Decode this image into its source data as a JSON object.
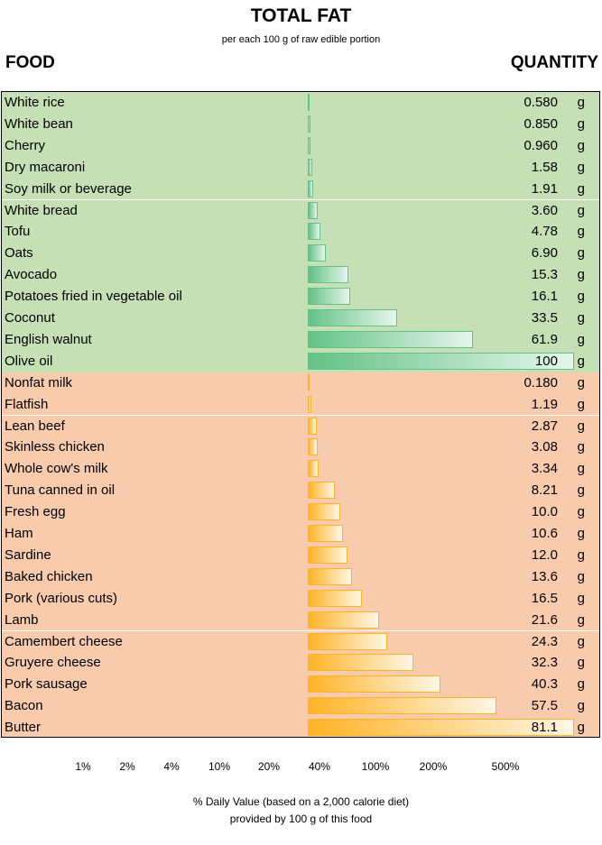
{
  "chart_data": {
    "type": "bar",
    "orientation": "horizontal",
    "title": "TOTAL FAT",
    "subtitle": "per each 100 g of raw edible portion",
    "left_header": "FOOD",
    "right_header": "QUANTITY",
    "unit": "g",
    "colors": {
      "plant_bg": "#c5e0b4",
      "animal_bg": "#f8cbad",
      "plant_bar": "#63c287",
      "animal_bar": "#ffb327"
    },
    "groups": [
      {
        "id": "plant",
        "items": [
          {
            "food": "White rice",
            "value": 0.58,
            "label": "0.580"
          },
          {
            "food": "White bean",
            "value": 0.85,
            "label": "0.850"
          },
          {
            "food": "Cherry",
            "value": 0.96,
            "label": "0.960"
          },
          {
            "food": "Dry macaroni",
            "value": 1.58,
            "label": "1.58"
          },
          {
            "food": "Soy milk or beverage",
            "value": 1.91,
            "label": "1.91"
          },
          {
            "food": "White bread",
            "value": 3.6,
            "label": "3.60"
          },
          {
            "food": "Tofu",
            "value": 4.78,
            "label": "4.78"
          },
          {
            "food": "Oats",
            "value": 6.9,
            "label": "6.90"
          },
          {
            "food": "Avocado",
            "value": 15.3,
            "label": "15.3"
          },
          {
            "food": "Potatoes fried in vegetable oil",
            "value": 16.1,
            "label": "16.1"
          },
          {
            "food": "Coconut",
            "value": 33.5,
            "label": "33.5"
          },
          {
            "food": "English walnut",
            "value": 61.9,
            "label": "61.9"
          },
          {
            "food": "Olive oil",
            "value": 100,
            "label": "100"
          }
        ]
      },
      {
        "id": "animal",
        "items": [
          {
            "food": "Nonfat milk",
            "value": 0.18,
            "label": "0.180"
          },
          {
            "food": "Flatfish",
            "value": 1.19,
            "label": "1.19"
          },
          {
            "food": "Lean beef",
            "value": 2.87,
            "label": "2.87"
          },
          {
            "food": "Skinless chicken",
            "value": 3.08,
            "label": "3.08"
          },
          {
            "food": "Whole cow's milk",
            "value": 3.34,
            "label": "3.34"
          },
          {
            "food": "Tuna canned in oil",
            "value": 8.21,
            "label": "8.21"
          },
          {
            "food": "Fresh egg",
            "value": 10.0,
            "label": "10.0"
          },
          {
            "food": "Ham",
            "value": 10.6,
            "label": "10.6"
          },
          {
            "food": "Sardine",
            "value": 12.0,
            "label": "12.0"
          },
          {
            "food": "Baked chicken",
            "value": 13.6,
            "label": "13.6"
          },
          {
            "food": "Pork (various cuts)",
            "value": 16.5,
            "label": "16.5"
          },
          {
            "food": "Lamb",
            "value": 21.6,
            "label": "21.6"
          },
          {
            "food": "Camembert cheese",
            "value": 24.3,
            "label": "24.3"
          },
          {
            "food": "Gruyere cheese",
            "value": 32.3,
            "label": "32.3"
          },
          {
            "food": "Pork sausage",
            "value": 40.3,
            "label": "40.3"
          },
          {
            "food": "Bacon",
            "value": 57.5,
            "label": "57.5"
          },
          {
            "food": "Butter",
            "value": 81.1,
            "label": "81.1"
          }
        ]
      }
    ],
    "x_ticks": [
      "1%",
      "2%",
      "4%",
      "10%",
      "20%",
      "40%",
      "100%",
      "200%",
      "500%"
    ],
    "xlabel_line1": "% Daily Value (based on a 2,000 calorie diet)",
    "xlabel_line2": "provided by 100 g of this food"
  }
}
